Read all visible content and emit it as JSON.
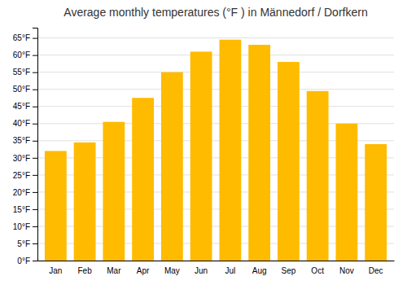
{
  "chart_data": {
    "type": "bar",
    "title": "Average monthly temperatures (°F ) in Männedorf / Dorfkern",
    "categories": [
      "Jan",
      "Feb",
      "Mar",
      "Apr",
      "May",
      "Jun",
      "Jul",
      "Aug",
      "Sep",
      "Oct",
      "Nov",
      "Dec"
    ],
    "values": [
      32,
      34.5,
      40.5,
      47.5,
      55,
      61,
      64.5,
      63,
      58,
      49.5,
      40,
      34
    ],
    "color": "#FFBB00",
    "ylim": [
      0,
      68
    ],
    "yticks": [
      {
        "value": 0,
        "label": "0°F"
      },
      {
        "value": 5,
        "label": "5°F"
      },
      {
        "value": 10,
        "label": "10°F"
      },
      {
        "value": 15,
        "label": "15°F"
      },
      {
        "value": 20,
        "label": "20°F"
      },
      {
        "value": 25,
        "label": "25°F"
      },
      {
        "value": 30,
        "label": "30°F"
      },
      {
        "value": 35,
        "label": "35°F"
      },
      {
        "value": 40,
        "label": "40°F"
      },
      {
        "value": 45,
        "label": "45°F"
      },
      {
        "value": 50,
        "label": "50°F"
      },
      {
        "value": 55,
        "label": "55°F"
      },
      {
        "value": 60,
        "label": "60°F"
      },
      {
        "value": 65,
        "label": "65°F"
      }
    ],
    "grid": true
  }
}
